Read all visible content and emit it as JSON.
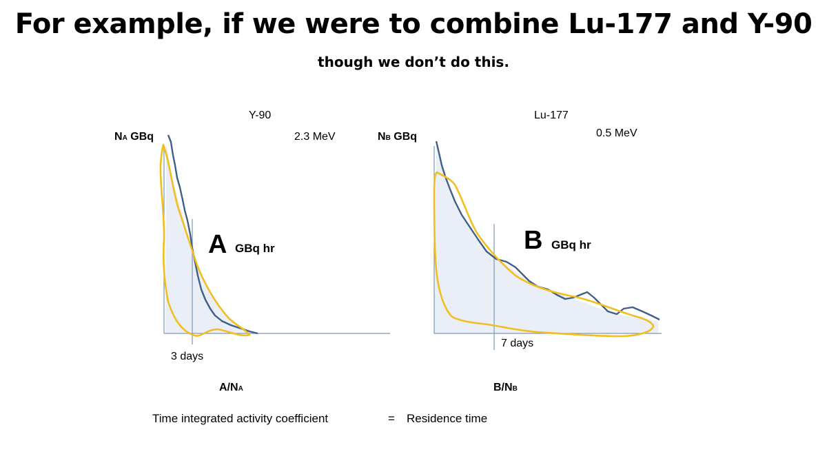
{
  "slide": {
    "title": "For example, if we were to combine Lu-177 and Y-90",
    "subtitle": "though we don’t do this."
  },
  "diagrams": [
    {
      "isotope": "Y-90",
      "energy": "2.3 MeV",
      "y_label_prefix": "N",
      "y_label_sub": "A",
      "y_label_unit": " GBq",
      "area_letter": "A",
      "area_unit": "GBq hr",
      "time_marker": "3 days",
      "ratio_num": "A/N",
      "ratio_sub": "A"
    },
    {
      "isotope": "Lu-177",
      "energy": "0.5 MeV",
      "y_label_prefix": "N",
      "y_label_sub": "B",
      "y_label_unit": " GBq",
      "area_letter": "B",
      "area_unit": "GBq hr",
      "time_marker": "7 days",
      "ratio_num": "B/N",
      "ratio_sub": "B"
    }
  ],
  "footer": {
    "left": "Time integrated activity coefficient",
    "equals": "=",
    "right": "Residence time"
  },
  "colors": {
    "decay_curve": "#3f5f86",
    "highlight_outline": "#f2be1e",
    "area_fill": "#e9eef7",
    "axis": "#7c98b8"
  }
}
